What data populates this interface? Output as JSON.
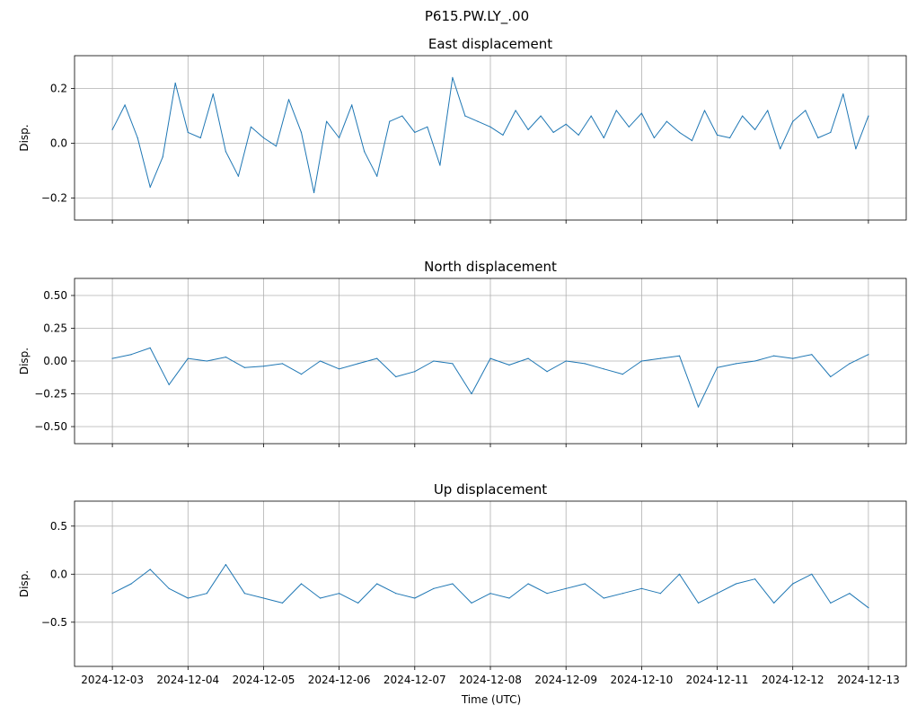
{
  "figure": {
    "suptitle": "P615.PW.LY_.00",
    "xlabel": "Time (UTC)"
  },
  "chart_data": [
    {
      "type": "line",
      "title": "East displacement",
      "ylabel": "Disp.",
      "xlim": [
        "2024-12-02T12:00",
        "2024-12-13T12:00"
      ],
      "ylim": [
        -0.28,
        0.32
      ],
      "yticks": [
        -0.2,
        0.0,
        0.2
      ],
      "ytick_labels": [
        "−0.2",
        "0.0",
        "0.2"
      ],
      "grid": true,
      "series": [
        {
          "color": "#1f77b4",
          "x": [
            "2024-12-03T00:00",
            "2024-12-03T04:00",
            "2024-12-03T08:00",
            "2024-12-03T12:00",
            "2024-12-03T16:00",
            "2024-12-03T20:00",
            "2024-12-04T00:00",
            "2024-12-04T04:00",
            "2024-12-04T08:00",
            "2024-12-04T12:00",
            "2024-12-04T16:00",
            "2024-12-04T20:00",
            "2024-12-05T00:00",
            "2024-12-05T04:00",
            "2024-12-05T08:00",
            "2024-12-05T12:00",
            "2024-12-05T16:00",
            "2024-12-05T20:00",
            "2024-12-06T00:00",
            "2024-12-06T04:00",
            "2024-12-06T08:00",
            "2024-12-06T12:00",
            "2024-12-06T16:00",
            "2024-12-06T20:00",
            "2024-12-07T00:00",
            "2024-12-07T04:00",
            "2024-12-07T08:00",
            "2024-12-07T12:00",
            "2024-12-07T16:00",
            "2024-12-07T20:00",
            "2024-12-08T00:00",
            "2024-12-08T04:00",
            "2024-12-08T08:00",
            "2024-12-08T12:00",
            "2024-12-08T16:00",
            "2024-12-08T20:00",
            "2024-12-09T00:00",
            "2024-12-09T04:00",
            "2024-12-09T08:00",
            "2024-12-09T12:00",
            "2024-12-09T16:00",
            "2024-12-09T20:00",
            "2024-12-10T00:00",
            "2024-12-10T04:00",
            "2024-12-10T08:00",
            "2024-12-10T12:00",
            "2024-12-10T16:00",
            "2024-12-10T20:00",
            "2024-12-11T00:00",
            "2024-12-11T04:00",
            "2024-12-11T08:00",
            "2024-12-11T12:00",
            "2024-12-11T16:00",
            "2024-12-11T20:00",
            "2024-12-12T00:00",
            "2024-12-12T04:00",
            "2024-12-12T08:00",
            "2024-12-12T12:00",
            "2024-12-12T16:00",
            "2024-12-12T20:00",
            "2024-12-13T00:00"
          ],
          "values": [
            0.05,
            0.14,
            0.02,
            -0.16,
            -0.05,
            0.22,
            0.04,
            0.02,
            0.18,
            -0.03,
            -0.12,
            0.06,
            0.02,
            -0.01,
            0.16,
            0.04,
            -0.18,
            0.08,
            0.02,
            0.14,
            -0.03,
            -0.12,
            0.08,
            0.1,
            0.04,
            0.06,
            -0.08,
            0.24,
            0.1,
            0.08,
            0.06,
            0.03,
            0.12,
            0.05,
            0.1,
            0.04,
            0.07,
            0.03,
            0.1,
            0.02,
            0.12,
            0.06,
            0.11,
            0.02,
            0.08,
            0.04,
            0.01,
            0.12,
            0.03,
            0.02,
            0.1,
            0.05,
            0.12,
            -0.02,
            0.08,
            0.12,
            0.02,
            0.04,
            0.18,
            -0.02,
            0.1
          ]
        }
      ]
    },
    {
      "type": "line",
      "title": "North displacement",
      "ylabel": "Disp.",
      "xlim": [
        "2024-12-02T12:00",
        "2024-12-13T12:00"
      ],
      "ylim": [
        -0.63,
        0.63
      ],
      "yticks": [
        -0.5,
        -0.25,
        0.0,
        0.25,
        0.5
      ],
      "ytick_labels": [
        "−0.50",
        "−0.25",
        "0.00",
        "0.25",
        "0.50"
      ],
      "grid": true,
      "series": [
        {
          "color": "#1f77b4",
          "x": [
            "2024-12-03T00:00",
            "2024-12-03T06:00",
            "2024-12-03T12:00",
            "2024-12-03T18:00",
            "2024-12-04T00:00",
            "2024-12-04T06:00",
            "2024-12-04T12:00",
            "2024-12-04T18:00",
            "2024-12-05T00:00",
            "2024-12-05T06:00",
            "2024-12-05T12:00",
            "2024-12-05T18:00",
            "2024-12-06T00:00",
            "2024-12-06T06:00",
            "2024-12-06T12:00",
            "2024-12-06T18:00",
            "2024-12-07T00:00",
            "2024-12-07T06:00",
            "2024-12-07T12:00",
            "2024-12-07T18:00",
            "2024-12-08T00:00",
            "2024-12-08T06:00",
            "2024-12-08T12:00",
            "2024-12-08T18:00",
            "2024-12-09T00:00",
            "2024-12-09T06:00",
            "2024-12-09T12:00",
            "2024-12-09T18:00",
            "2024-12-10T00:00",
            "2024-12-10T06:00",
            "2024-12-10T12:00",
            "2024-12-10T18:00",
            "2024-12-11T00:00",
            "2024-12-11T06:00",
            "2024-12-11T12:00",
            "2024-12-11T18:00",
            "2024-12-12T00:00",
            "2024-12-12T06:00",
            "2024-12-12T12:00",
            "2024-12-12T18:00",
            "2024-12-13T00:00"
          ],
          "values": [
            0.02,
            0.05,
            0.1,
            -0.18,
            0.02,
            0.0,
            0.03,
            -0.05,
            -0.04,
            -0.02,
            -0.1,
            0.0,
            -0.06,
            -0.02,
            0.02,
            -0.12,
            -0.08,
            0.0,
            -0.02,
            -0.25,
            0.02,
            -0.03,
            0.02,
            -0.08,
            0.0,
            -0.02,
            -0.06,
            -0.1,
            0.0,
            0.02,
            0.04,
            -0.35,
            -0.05,
            -0.02,
            0.0,
            0.04,
            0.02,
            0.05,
            -0.12,
            -0.02,
            0.05
          ]
        }
      ]
    },
    {
      "type": "line",
      "title": "Up displacement",
      "ylabel": "Disp.",
      "xlim": [
        "2024-12-02T12:00",
        "2024-12-13T12:00"
      ],
      "ylim": [
        -0.96,
        0.76
      ],
      "yticks": [
        -0.5,
        0.0,
        0.5
      ],
      "ytick_labels": [
        "−0.5",
        "0.0",
        "0.5"
      ],
      "grid": true,
      "series": [
        {
          "color": "#1f77b4",
          "x": [
            "2024-12-03T00:00",
            "2024-12-03T06:00",
            "2024-12-03T12:00",
            "2024-12-03T18:00",
            "2024-12-04T00:00",
            "2024-12-04T06:00",
            "2024-12-04T12:00",
            "2024-12-04T18:00",
            "2024-12-05T00:00",
            "2024-12-05T06:00",
            "2024-12-05T12:00",
            "2024-12-05T18:00",
            "2024-12-06T00:00",
            "2024-12-06T06:00",
            "2024-12-06T12:00",
            "2024-12-06T18:00",
            "2024-12-07T00:00",
            "2024-12-07T06:00",
            "2024-12-07T12:00",
            "2024-12-07T18:00",
            "2024-12-08T00:00",
            "2024-12-08T06:00",
            "2024-12-08T12:00",
            "2024-12-08T18:00",
            "2024-12-09T00:00",
            "2024-12-09T06:00",
            "2024-12-09T12:00",
            "2024-12-09T18:00",
            "2024-12-10T00:00",
            "2024-12-10T06:00",
            "2024-12-10T12:00",
            "2024-12-10T18:00",
            "2024-12-11T00:00",
            "2024-12-11T06:00",
            "2024-12-11T12:00",
            "2024-12-11T18:00",
            "2024-12-12T00:00",
            "2024-12-12T06:00",
            "2024-12-12T12:00",
            "2024-12-12T18:00",
            "2024-12-13T00:00"
          ],
          "values": [
            -0.2,
            -0.1,
            0.05,
            -0.15,
            -0.25,
            -0.2,
            0.1,
            -0.2,
            -0.25,
            -0.3,
            -0.1,
            -0.25,
            -0.2,
            -0.3,
            -0.1,
            -0.2,
            -0.25,
            -0.15,
            -0.1,
            -0.3,
            -0.2,
            -0.25,
            -0.1,
            -0.2,
            -0.15,
            -0.1,
            -0.25,
            -0.2,
            -0.15,
            -0.2,
            0.0,
            -0.3,
            -0.2,
            -0.1,
            -0.05,
            -0.3,
            -0.1,
            0.0,
            -0.3,
            -0.2,
            -0.35
          ]
        }
      ]
    }
  ],
  "xticks": [
    {
      "t": "2024-12-03T00:00",
      "label": "2024-12-03"
    },
    {
      "t": "2024-12-04T00:00",
      "label": "2024-12-04"
    },
    {
      "t": "2024-12-05T00:00",
      "label": "2024-12-05"
    },
    {
      "t": "2024-12-06T00:00",
      "label": "2024-12-06"
    },
    {
      "t": "2024-12-07T00:00",
      "label": "2024-12-07"
    },
    {
      "t": "2024-12-08T00:00",
      "label": "2024-12-08"
    },
    {
      "t": "2024-12-09T00:00",
      "label": "2024-12-09"
    },
    {
      "t": "2024-12-10T00:00",
      "label": "2024-12-10"
    },
    {
      "t": "2024-12-11T00:00",
      "label": "2024-12-11"
    },
    {
      "t": "2024-12-12T00:00",
      "label": "2024-12-12"
    },
    {
      "t": "2024-12-13T00:00",
      "label": "2024-12-13"
    }
  ]
}
